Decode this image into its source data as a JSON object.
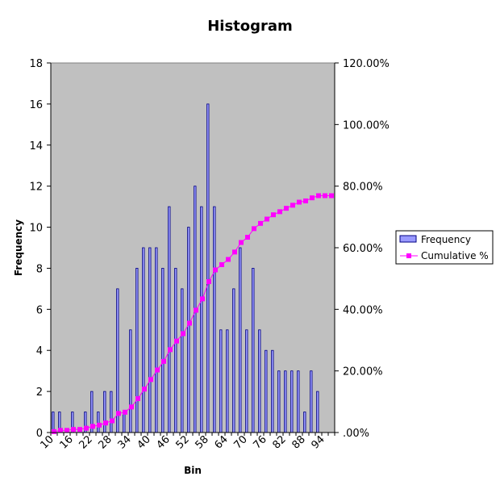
{
  "chart_data": {
    "type": "bar",
    "title": "Histogram",
    "xlabel": "Bin",
    "ylabel": "Frequency",
    "x": [
      10,
      12,
      14,
      16,
      18,
      20,
      22,
      24,
      26,
      28,
      30,
      32,
      34,
      36,
      38,
      40,
      42,
      44,
      46,
      48,
      50,
      52,
      54,
      56,
      58,
      60,
      62,
      64,
      66,
      68,
      70,
      72,
      74,
      76,
      78,
      80,
      82,
      84,
      86,
      88,
      90,
      92,
      94,
      96
    ],
    "categories": [
      "10",
      "16",
      "22",
      "28",
      "34",
      "40",
      "46",
      "52",
      "58",
      "64",
      "70",
      "76",
      "82",
      "88",
      "94"
    ],
    "ylim": [
      0,
      18
    ],
    "y2lim": [
      0,
      1.2
    ],
    "yticks": [
      "0",
      "2",
      "4",
      "6",
      "8",
      "10",
      "12",
      "14",
      "16",
      "18"
    ],
    "y2ticks": [
      ".00%",
      "20.00%",
      "40.00%",
      "60.00%",
      "80.00%",
      "100.00%",
      "120.00%"
    ],
    "series": [
      {
        "name": "Frequency",
        "color": "#9999ff",
        "values": [
          1,
          1,
          0,
          1,
          0,
          1,
          2,
          1,
          2,
          2,
          7,
          1,
          5,
          8,
          9,
          9,
          9,
          8,
          11,
          8,
          7,
          10,
          12,
          11,
          16,
          11,
          5,
          5,
          7,
          9,
          5,
          8,
          5,
          4,
          4,
          3,
          3,
          3,
          3,
          1,
          3,
          2,
          0,
          0
        ]
      },
      {
        "name": "Cumulative %",
        "color": "#ff00ff",
        "values": [
          0.003,
          0.007,
          0.007,
          0.01,
          0.01,
          0.014,
          0.02,
          0.024,
          0.031,
          0.038,
          0.062,
          0.066,
          0.083,
          0.11,
          0.141,
          0.172,
          0.203,
          0.231,
          0.269,
          0.297,
          0.321,
          0.355,
          0.397,
          0.434,
          0.49,
          0.528,
          0.545,
          0.562,
          0.586,
          0.617,
          0.634,
          0.662,
          0.679,
          0.693,
          0.707,
          0.717,
          0.728,
          0.738,
          0.748,
          0.752,
          0.762,
          0.769,
          0.769,
          0.769
        ]
      }
    ]
  },
  "colors": {
    "plot_bg": "#c0c0c0",
    "bar_fill": "#9999ff",
    "bar_stroke": "#000080",
    "line": "#ff00ff"
  }
}
